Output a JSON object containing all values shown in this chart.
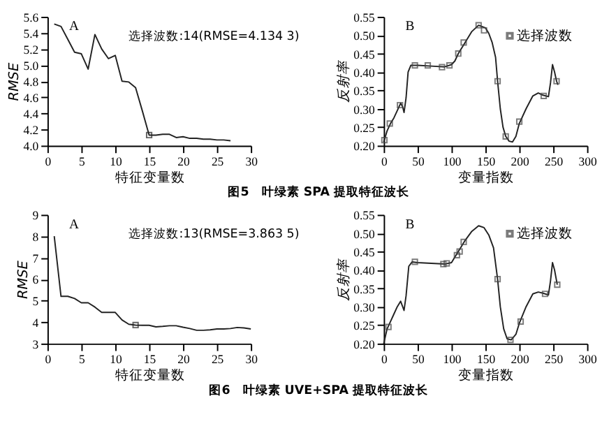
{
  "chart_data": [
    {
      "type": "line",
      "xlabel": "特征变量数",
      "ylabel": "RMSE",
      "annotations": [
        "A",
        "选择波数:14(RMSE=4.134 3)",
        "图5　叶绿素 SPA 提取特征波长"
      ],
      "xlim": [
        0,
        30
      ],
      "xticks": [
        0,
        5,
        10,
        15,
        20,
        25,
        30
      ],
      "ylim": [
        4.0,
        5.6
      ],
      "yticks": [
        {
          "value": 4,
          "label": "4.0"
        },
        4.2,
        4.4,
        4.6,
        4.8,
        {
          "value": 5,
          "label": "5.0"
        },
        5.2,
        5.4,
        5.6
      ],
      "grid": false,
      "legend": false,
      "series": [
        {
          "color": "#222222",
          "marker": "none",
          "x": [
            1,
            2,
            3,
            4,
            5,
            6,
            7,
            8,
            9,
            10,
            11,
            12,
            13,
            14,
            15,
            16,
            17,
            18,
            19,
            20,
            21,
            22,
            23,
            24,
            25,
            26,
            27
          ],
          "values": [
            5.51,
            5.48,
            5.32,
            5.16,
            5.14,
            4.95,
            5.38,
            5.2,
            5.08,
            5.12,
            4.8,
            4.79,
            4.72,
            4.43,
            4.13,
            4.13,
            4.14,
            4.14,
            4.1,
            4.11,
            4.09,
            4.09,
            4.08,
            4.08,
            4.07,
            4.07,
            4.06
          ]
        },
        {
          "type": "scatter",
          "color": "#222222",
          "marker": "square",
          "x": [
            15
          ],
          "values": [
            4.13
          ]
        }
      ]
    },
    {
      "type": "line",
      "xlabel": "变量指数",
      "ylabel": "反射率",
      "annotations": [
        "B"
      ],
      "xlim": [
        0,
        300
      ],
      "xticks": [
        0,
        50,
        100,
        150,
        200,
        250,
        300
      ],
      "ylim": [
        0.2,
        0.55
      ],
      "yticks": [
        {
          "value": 0.2,
          "label": "0.20"
        },
        0.25,
        {
          "value": 0.3,
          "label": "0.30"
        },
        0.35,
        {
          "value": 0.4,
          "label": "0.40"
        },
        0.45,
        {
          "value": 0.5,
          "label": "0.50"
        },
        0.55
      ],
      "grid": false,
      "legend": "top right",
      "series": [
        {
          "color": "#222222",
          "marker": "none",
          "x": [
            0,
            5,
            10,
            15,
            20,
            25,
            28,
            30,
            33,
            36,
            40,
            50,
            70,
            90,
            100,
            105,
            110,
            120,
            130,
            140,
            150,
            155,
            160,
            165,
            168,
            172,
            176,
            180,
            185,
            190,
            195,
            200,
            210,
            220,
            228,
            235,
            243,
            246,
            249,
            252,
            255,
            257
          ],
          "values": [
            0.21,
            0.24,
            0.26,
            0.275,
            0.295,
            0.315,
            0.305,
            0.29,
            0.33,
            0.4,
            0.418,
            0.418,
            0.416,
            0.414,
            0.42,
            0.43,
            0.45,
            0.48,
            0.51,
            0.527,
            0.52,
            0.505,
            0.48,
            0.44,
            0.375,
            0.3,
            0.25,
            0.225,
            0.212,
            0.21,
            0.225,
            0.26,
            0.3,
            0.335,
            0.343,
            0.337,
            0.333,
            0.37,
            0.42,
            0.4,
            0.375,
            0.365
          ]
        },
        {
          "type": "scatter",
          "name": "选择波数",
          "color": "#444444",
          "marker": "square",
          "x": [
            1,
            9,
            24,
            46,
            65,
            86,
            97,
            110,
            118,
            140,
            148,
            168,
            180,
            200,
            236,
            255
          ],
          "values": [
            0.215,
            0.26,
            0.31,
            0.418,
            0.418,
            0.413,
            0.418,
            0.45,
            0.48,
            0.527,
            0.513,
            0.375,
            0.225,
            0.265,
            0.335,
            0.375
          ]
        }
      ]
    },
    {
      "type": "line",
      "xlabel": "特征变量数",
      "ylabel": "RMSE",
      "annotations": [
        "A",
        "选择波数:13(RMSE=3.863 5)",
        "图6　叶绿素 UVE+SPA 提取特征波长"
      ],
      "xlim": [
        0,
        30
      ],
      "xticks": [
        0,
        5,
        10,
        15,
        20,
        25,
        30
      ],
      "ylim": [
        3,
        9
      ],
      "yticks": [
        3,
        4,
        5,
        6,
        7,
        8,
        9
      ],
      "grid": false,
      "legend": false,
      "series": [
        {
          "color": "#222222",
          "marker": "none",
          "x": [
            1,
            2,
            3,
            4,
            5,
            6,
            7,
            8,
            9,
            10,
            11,
            12,
            13,
            14,
            15,
            16,
            17,
            18,
            19,
            20,
            21,
            22,
            23,
            24,
            25,
            26,
            27,
            28,
            29,
            30
          ],
          "values": [
            8.0,
            5.2,
            5.2,
            5.1,
            4.9,
            4.9,
            4.7,
            4.45,
            4.45,
            4.45,
            4.1,
            3.9,
            3.86,
            3.85,
            3.85,
            3.78,
            3.8,
            3.83,
            3.83,
            3.76,
            3.7,
            3.62,
            3.62,
            3.64,
            3.68,
            3.68,
            3.7,
            3.75,
            3.73,
            3.68
          ]
        },
        {
          "type": "scatter",
          "color": "#222222",
          "marker": "square",
          "x": [
            13
          ],
          "values": [
            3.86
          ]
        }
      ]
    },
    {
      "type": "line",
      "xlabel": "变量指数",
      "ylabel": "反射率",
      "annotations": [
        "B"
      ],
      "xlim": [
        0,
        300
      ],
      "xticks": [
        0,
        50,
        100,
        150,
        200,
        250,
        300
      ],
      "ylim": [
        0.2,
        0.55
      ],
      "yticks": [
        {
          "value": 0.2,
          "label": "0.20"
        },
        0.25,
        {
          "value": 0.3,
          "label": "0.30"
        },
        0.35,
        {
          "value": 0.4,
          "label": "0.40"
        },
        0.45,
        {
          "value": 0.5,
          "label": "0.50"
        },
        0.55
      ],
      "grid": false,
      "legend": "top right",
      "series": [
        {
          "color": "#222222",
          "marker": "none",
          "x": [
            0,
            5,
            10,
            15,
            20,
            25,
            28,
            30,
            33,
            37,
            42,
            50,
            70,
            90,
            100,
            105,
            110,
            120,
            130,
            140,
            148,
            155,
            162,
            168,
            172,
            177,
            182,
            188,
            195,
            200,
            210,
            220,
            228,
            235,
            243,
            246,
            249,
            252,
            256
          ],
          "values": [
            0.2,
            0.24,
            0.26,
            0.28,
            0.3,
            0.315,
            0.3,
            0.29,
            0.33,
            0.41,
            0.422,
            0.42,
            0.418,
            0.416,
            0.42,
            0.435,
            0.45,
            0.48,
            0.505,
            0.52,
            0.515,
            0.495,
            0.46,
            0.375,
            0.3,
            0.24,
            0.213,
            0.21,
            0.225,
            0.255,
            0.3,
            0.335,
            0.34,
            0.337,
            0.332,
            0.37,
            0.42,
            0.4,
            0.36
          ]
        },
        {
          "type": "scatter",
          "name": "选择波数",
          "color": "#444444",
          "marker": "square",
          "x": [
            7,
            46,
            88,
            93,
            108,
            112,
            118,
            168,
            187,
            202,
            238,
            256
          ],
          "values": [
            0.245,
            0.422,
            0.416,
            0.418,
            0.44,
            0.45,
            0.476,
            0.375,
            0.21,
            0.26,
            0.335,
            0.36
          ]
        }
      ]
    }
  ]
}
